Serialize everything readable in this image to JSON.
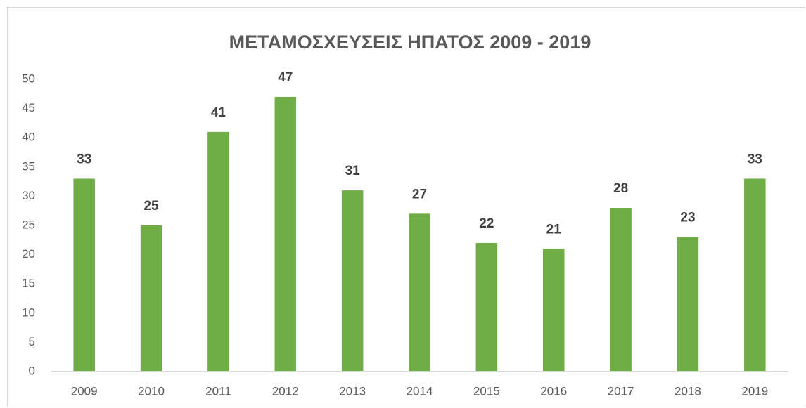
{
  "chart_data": {
    "type": "bar",
    "title": "ΜΕΤΑΜΟΣΧΕΥΣΕΙΣ ΗΠΑΤΟΣ 2009 - 2019",
    "categories": [
      "2009",
      "2010",
      "2011",
      "2012",
      "2013",
      "2014",
      "2015",
      "2016",
      "2017",
      "2018",
      "2019"
    ],
    "values": [
      33,
      25,
      41,
      47,
      31,
      27,
      22,
      21,
      28,
      23,
      33
    ],
    "color": "#70ad47",
    "ylim": [
      0,
      50
    ],
    "yticks": [
      0,
      5,
      10,
      15,
      20,
      25,
      30,
      35,
      40,
      45,
      50
    ],
    "grid": false
  }
}
